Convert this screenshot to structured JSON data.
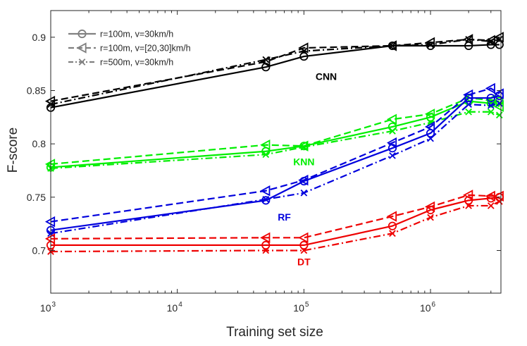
{
  "chart_data": {
    "type": "line",
    "title": "",
    "xlabel": "Training set size",
    "ylabel": "F-score",
    "xscale": "log",
    "xlim": [
      1000,
      3600000
    ],
    "ylim": [
      0.66,
      0.925
    ],
    "x_ticks": [
      {
        "value": 1000,
        "base": "10",
        "exp": "3"
      },
      {
        "value": 10000,
        "base": "10",
        "exp": "4"
      },
      {
        "value": 100000,
        "base": "10",
        "exp": "5"
      },
      {
        "value": 1000000,
        "base": "10",
        "exp": "6"
      }
    ],
    "y_ticks": [
      {
        "value": 0.7,
        "label": "0.7"
      },
      {
        "value": 0.75,
        "label": "0.75"
      },
      {
        "value": 0.8,
        "label": "0.8"
      },
      {
        "value": 0.85,
        "label": "0.85"
      },
      {
        "value": 0.9,
        "label": "0.9"
      }
    ],
    "legend": {
      "placement": "top-left",
      "color": "#808080",
      "entries": [
        {
          "label": "r=100m, v=30km/h",
          "dash": "solid",
          "marker": "circle"
        },
        {
          "label": "r=100m, v=[20,30]km/h",
          "dash": "dashed",
          "marker": "triangle-left"
        },
        {
          "label": "r=500m, v=30km/h",
          "dash": "dashdot",
          "marker": "x"
        }
      ]
    },
    "x": [
      1000,
      50000,
      100000,
      500000,
      1000000,
      2000000,
      3000000,
      3500000
    ],
    "groups": [
      {
        "name": "CNN",
        "color": "#000000",
        "label_pos": {
          "x": 150000,
          "y": 0.86
        },
        "series": [
          {
            "scenario": "r=100m, v=30km/h",
            "dash": "solid",
            "marker": "circle",
            "values": [
              0.834,
              0.872,
              0.882,
              0.892,
              0.892,
              0.892,
              0.893,
              0.893
            ]
          },
          {
            "scenario": "r=100m, v=[20,30]km/h",
            "dash": "dashed",
            "marker": "triangle-left",
            "values": [
              0.84,
              0.877,
              0.89,
              0.892,
              0.895,
              0.898,
              0.897,
              0.9
            ]
          },
          {
            "scenario": "r=500m, v=30km/h",
            "dash": "dashdot",
            "marker": "x",
            "values": [
              0.837,
              0.879,
              0.887,
              0.892,
              0.893,
              0.898,
              0.896,
              0.898
            ]
          }
        ]
      },
      {
        "name": "KNN",
        "color": "#00ee00",
        "label_pos": {
          "x": 100000,
          "y": 0.78
        },
        "series": [
          {
            "scenario": "r=100m, v=30km/h",
            "dash": "solid",
            "marker": "circle",
            "values": [
              0.778,
              0.793,
              0.798,
              0.816,
              0.825,
              0.84,
              0.838,
              0.84
            ]
          },
          {
            "scenario": "r=100m, v=[20,30]km/h",
            "dash": "dashed",
            "marker": "triangle-left",
            "values": [
              0.781,
              0.799,
              0.798,
              0.823,
              0.828,
              0.843,
              0.841,
              0.835
            ]
          },
          {
            "scenario": "r=500m, v=30km/h",
            "dash": "dashdot",
            "marker": "x",
            "values": [
              0.777,
              0.79,
              0.797,
              0.812,
              0.82,
              0.83,
              0.83,
              0.827
            ]
          }
        ]
      },
      {
        "name": "RF",
        "color": "#0000dd",
        "label_pos": {
          "x": 70000,
          "y": 0.728
        },
        "series": [
          {
            "scenario": "r=100m, v=30km/h",
            "dash": "solid",
            "marker": "circle",
            "values": [
              0.719,
              0.747,
              0.765,
              0.796,
              0.81,
              0.843,
              0.843,
              0.845
            ]
          },
          {
            "scenario": "r=100m, v=[20,30]km/h",
            "dash": "dashed",
            "marker": "triangle-left",
            "values": [
              0.727,
              0.756,
              0.766,
              0.801,
              0.816,
              0.846,
              0.852,
              0.847
            ]
          },
          {
            "scenario": "r=500m, v=30km/h",
            "dash": "dashdot",
            "marker": "x",
            "values": [
              0.716,
              0.748,
              0.754,
              0.789,
              0.805,
              0.837,
              0.836,
              0.838
            ]
          }
        ]
      },
      {
        "name": "DT",
        "color": "#ee0000",
        "label_pos": {
          "x": 100000,
          "y": 0.686
        },
        "series": [
          {
            "scenario": "r=100m, v=30km/h",
            "dash": "solid",
            "marker": "circle",
            "values": [
              0.705,
              0.705,
              0.705,
              0.723,
              0.738,
              0.747,
              0.749,
              0.75
            ]
          },
          {
            "scenario": "r=100m, v=[20,30]km/h",
            "dash": "dashed",
            "marker": "triangle-left",
            "values": [
              0.711,
              0.712,
              0.712,
              0.732,
              0.741,
              0.752,
              0.751,
              0.751
            ]
          },
          {
            "scenario": "r=500m, v=30km/h",
            "dash": "dashdot",
            "marker": "x",
            "values": [
              0.699,
              0.7,
              0.7,
              0.716,
              0.731,
              0.742,
              0.742,
              0.746
            ]
          }
        ]
      }
    ]
  }
}
